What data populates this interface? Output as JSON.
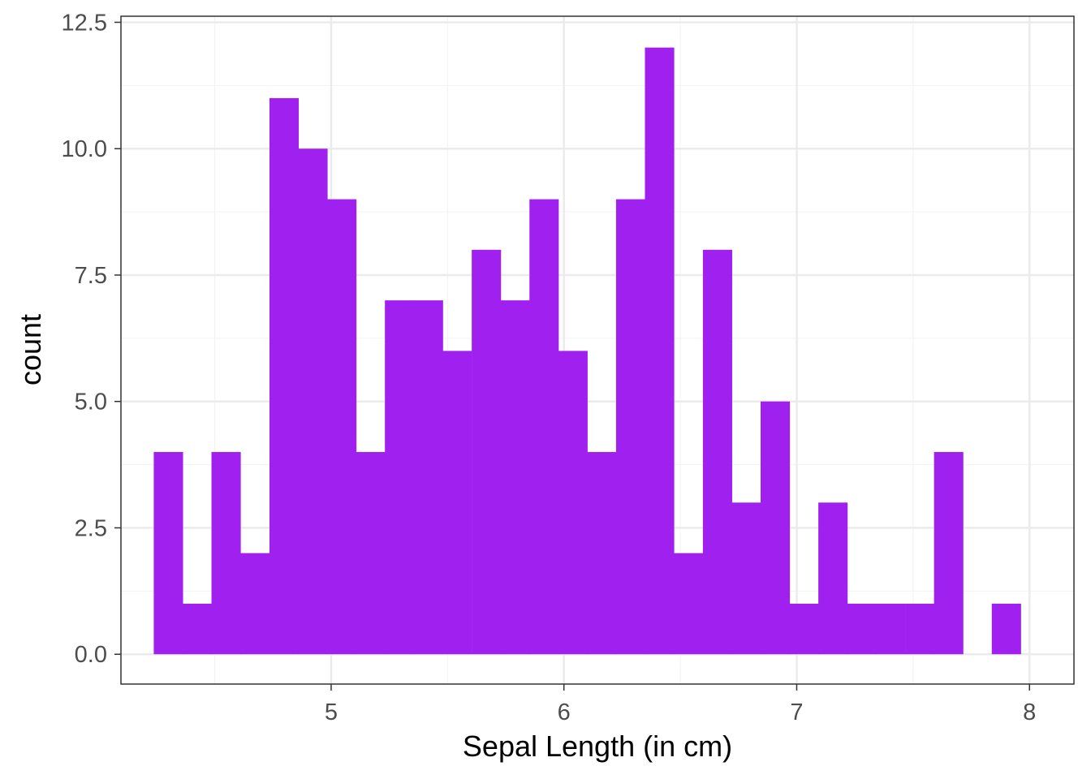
{
  "chart_data": {
    "type": "bar",
    "subtype": "histogram",
    "xlabel": "Sepal Length (in cm)",
    "ylabel": "count",
    "bar_color": "#A020F0",
    "bin_width": 0.1241,
    "bin_centers": [
      4.3,
      4.424,
      4.548,
      4.672,
      4.797,
      4.921,
      5.045,
      5.169,
      5.293,
      5.417,
      5.541,
      5.666,
      5.79,
      5.914,
      6.038,
      6.162,
      6.286,
      6.41,
      6.534,
      6.659,
      6.783,
      6.907,
      7.031,
      7.155,
      7.279,
      7.403,
      7.528,
      7.652,
      7.776,
      7.9
    ],
    "values": [
      4,
      1,
      4,
      2,
      11,
      10,
      9,
      4,
      7,
      7,
      6,
      8,
      7,
      9,
      6,
      4,
      9,
      12,
      2,
      8,
      3,
      5,
      1,
      3,
      1,
      1,
      1,
      4,
      0,
      1
    ],
    "xlim": [
      4.097,
      8.191
    ],
    "ylim": [
      -0.59,
      12.62
    ],
    "x_ticks": [
      "5",
      "6",
      "7",
      "8"
    ],
    "y_ticks": [
      "0.0",
      "2.5",
      "5.0",
      "7.5",
      "10.0",
      "12.5"
    ],
    "grid": true,
    "theme": "bw"
  }
}
